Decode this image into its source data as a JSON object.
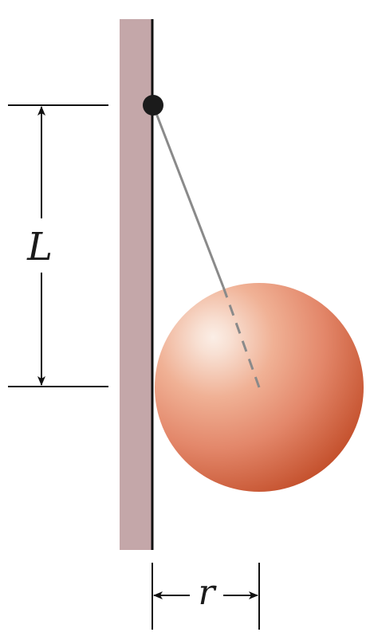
{
  "labels": {
    "length": "L",
    "radius": "r"
  },
  "colors": {
    "wall": "#c4a7a9",
    "wall_edge": "#111111",
    "string": "#8a8a8a",
    "pivot": "#1b1b1b",
    "ball_highlight": "#fbeee6",
    "ball_mid": "#eb9a7a",
    "ball_dark": "#c4502c",
    "dimension_lines": "#111111"
  }
}
